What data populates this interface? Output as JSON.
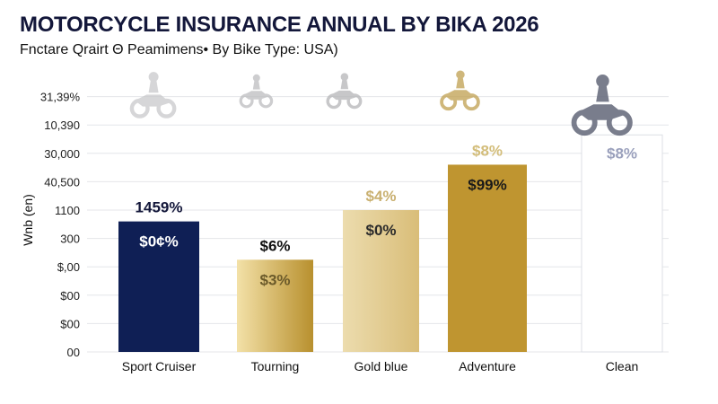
{
  "chart_data": {
    "type": "bar",
    "title": "MOTORCYCLE INSURANCE ANNUAL BY BIKA 2026",
    "subtitle": "Fnctare Qrairt Θ Peamimens• By Bike Type:  USA)",
    "ylabel": "Wnb (en)",
    "xlabel": "",
    "y_tick_labels": [
      "00",
      "$00",
      "$00",
      "$,00",
      "300",
      "1100",
      "40,500",
      "30,000",
      "10,390",
      "31,39%"
    ],
    "ylim": [
      0,
      9
    ],
    "grid": true,
    "categories": [
      "Sport Cruiser",
      "Tourning",
      "Gold blue",
      "Adventure",
      "Clean"
    ],
    "values": [
      4.6,
      3.25,
      5.0,
      6.6,
      7.65
    ],
    "top_labels": [
      "1459%",
      "$6%",
      "$4%",
      "$8%",
      "$8%"
    ],
    "inner_labels": [
      "$0¢%",
      "$3%",
      "$0%",
      "$99%",
      ""
    ],
    "colors": {
      "bars": [
        "#0f1f55",
        "#d9b86a",
        "#e2c98c",
        "#bf9530",
        "#ffffff"
      ],
      "top_label_colors": [
        "#13173a",
        "#111111",
        "#c9b070",
        "#d3bd7a",
        "#9aa0bc"
      ],
      "inner_label_colors": [
        "#ffffff",
        "#6b5a2a",
        "#2b2b2b",
        "#1a1a1a",
        "#000000"
      ]
    },
    "icons": [
      "motorcycle-icon",
      "motorcycle-icon",
      "motorcycle-icon",
      "motorcycle-icon",
      "motorcycle-icon"
    ]
  }
}
